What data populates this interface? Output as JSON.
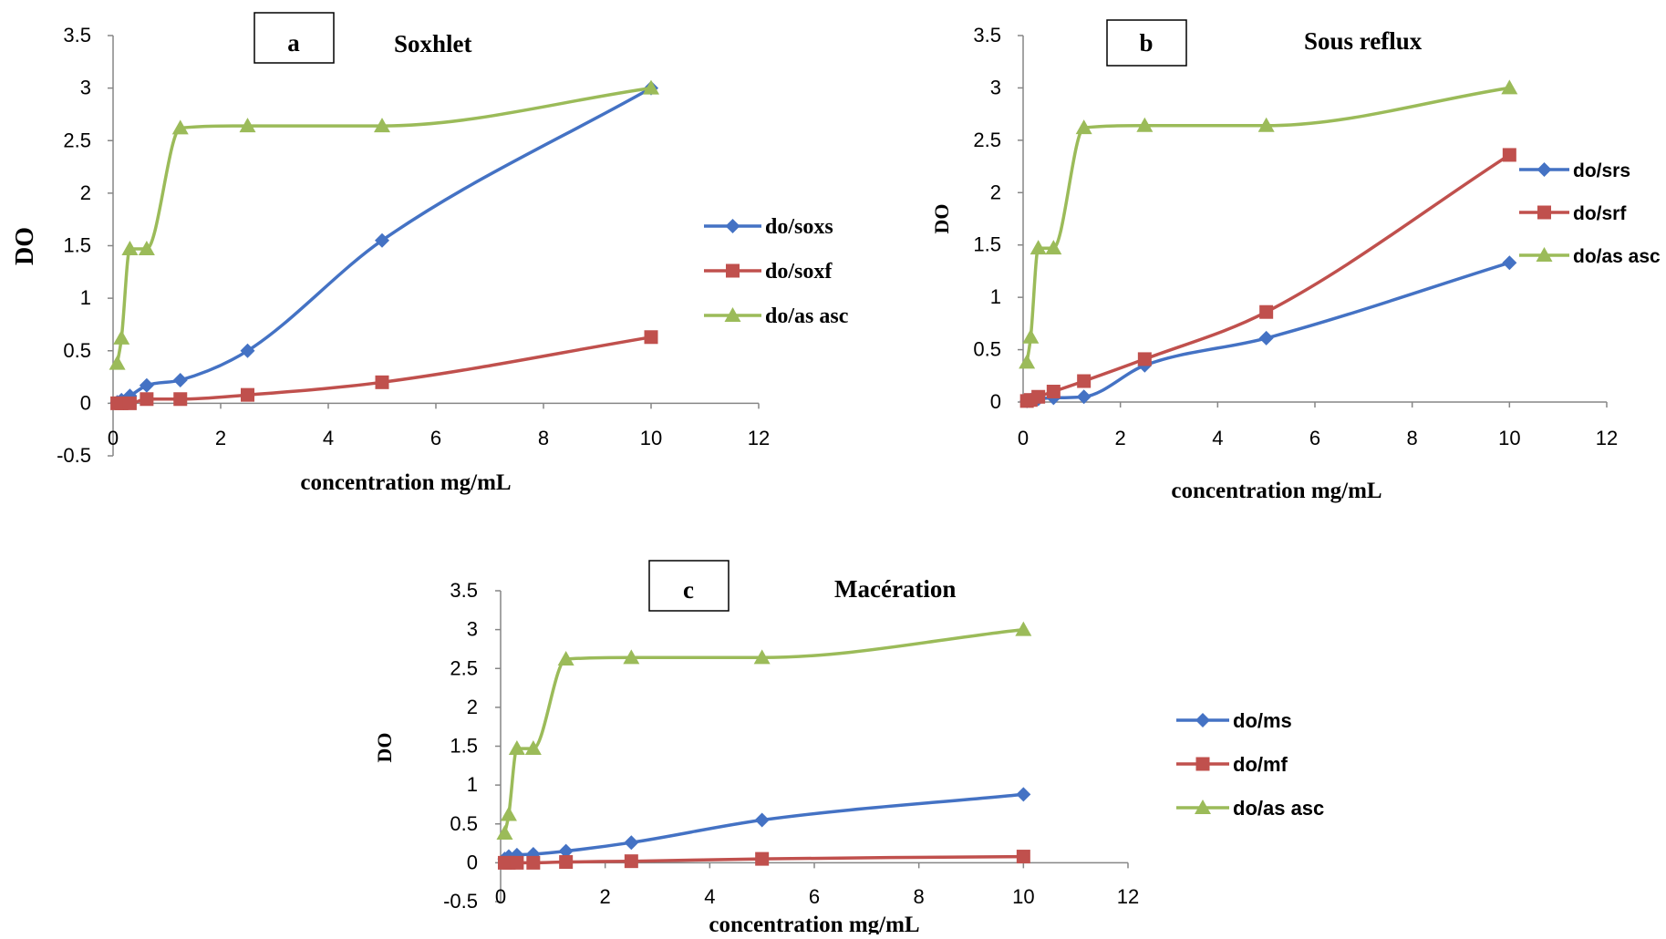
{
  "colors": {
    "blue": "#4472C4",
    "red": "#C0504D",
    "green": "#9BBB59",
    "axis": "#868686"
  },
  "charts": [
    {
      "panel_letter": "a",
      "title": "Soxhlet",
      "chart_data": {
        "type": "line",
        "xlabel": "concentration mg/mL",
        "ylabel": "DO",
        "xlim": [
          0,
          12
        ],
        "ylim": [
          -0.5,
          3.5
        ],
        "xticks": [
          "0",
          "2",
          "4",
          "6",
          "8",
          "10",
          "12"
        ],
        "yticks": [
          "-0.5",
          "0",
          "0.5",
          "1",
          "1.5",
          "2",
          "2.5",
          "3",
          "3.5"
        ],
        "grid": false,
        "legend_position": "right",
        "x": [
          0.078,
          0.156,
          0.312,
          0.625,
          1.25,
          2.5,
          5,
          10
        ],
        "series": [
          {
            "name": "do/soxs",
            "color": "blue",
            "marker": "diamond",
            "values": [
              0.01,
              0.03,
              0.07,
              0.17,
              0.22,
              0.5,
              1.55,
              3.0
            ]
          },
          {
            "name": "do/soxf",
            "color": "red",
            "marker": "square",
            "values": [
              0.0,
              0.0,
              0.0,
              0.04,
              0.04,
              0.08,
              0.2,
              0.63
            ]
          },
          {
            "name": "do/as asc",
            "color": "green",
            "marker": "triangle",
            "values": [
              0.38,
              0.62,
              1.47,
              1.47,
              2.62,
              2.64,
              2.64,
              3.0
            ]
          }
        ]
      }
    },
    {
      "panel_letter": "b",
      "title": "Sous reflux",
      "chart_data": {
        "type": "line",
        "xlabel": "concentration mg/mL",
        "ylabel": "DO",
        "xlim": [
          0,
          12
        ],
        "ylim": [
          0,
          3.5
        ],
        "xticks": [
          "0",
          "2",
          "4",
          "6",
          "8",
          "10",
          "12"
        ],
        "yticks": [
          "0",
          "0.5",
          "1",
          "1.5",
          "2",
          "2.5",
          "3",
          "3.5"
        ],
        "grid": false,
        "legend_position": "right",
        "x": [
          0.078,
          0.156,
          0.312,
          0.625,
          1.25,
          2.5,
          5,
          10
        ],
        "series": [
          {
            "name": "do/srs",
            "color": "blue",
            "marker": "diamond",
            "values": [
              0.01,
              0.02,
              0.03,
              0.04,
              0.05,
              0.35,
              0.61,
              1.33
            ]
          },
          {
            "name": "do/srf",
            "color": "red",
            "marker": "square",
            "values": [
              0.01,
              0.02,
              0.05,
              0.1,
              0.2,
              0.41,
              0.86,
              2.36
            ]
          },
          {
            "name": "do/as asc",
            "color": "green",
            "marker": "triangle",
            "values": [
              0.38,
              0.62,
              1.47,
              1.47,
              2.62,
              2.64,
              2.64,
              3.0
            ]
          }
        ]
      }
    },
    {
      "panel_letter": "c",
      "title": "Macération",
      "chart_data": {
        "type": "line",
        "xlabel": "concentration mg/mL",
        "ylabel": "DO",
        "xlim": [
          0,
          12
        ],
        "ylim": [
          -0.5,
          3.5
        ],
        "xticks": [
          "0",
          "2",
          "4",
          "6",
          "8",
          "10",
          "12"
        ],
        "yticks": [
          "-0.5",
          "0",
          "0.5",
          "1",
          "1.5",
          "2",
          "2.5",
          "3",
          "3.5"
        ],
        "grid": false,
        "legend_position": "right",
        "x": [
          0.078,
          0.156,
          0.312,
          0.625,
          1.25,
          2.5,
          5,
          10
        ],
        "series": [
          {
            "name": "do/ms",
            "color": "blue",
            "marker": "diamond",
            "values": [
              0.05,
              0.08,
              0.1,
              0.11,
              0.15,
              0.26,
              0.55,
              0.88
            ]
          },
          {
            "name": "do/mf",
            "color": "red",
            "marker": "square",
            "values": [
              0.0,
              0.0,
              0.0,
              0.0,
              0.01,
              0.02,
              0.05,
              0.08
            ]
          },
          {
            "name": "do/as asc",
            "color": "green",
            "marker": "triangle",
            "values": [
              0.38,
              0.62,
              1.47,
              1.47,
              2.62,
              2.64,
              2.64,
              3.0
            ]
          }
        ]
      }
    }
  ]
}
